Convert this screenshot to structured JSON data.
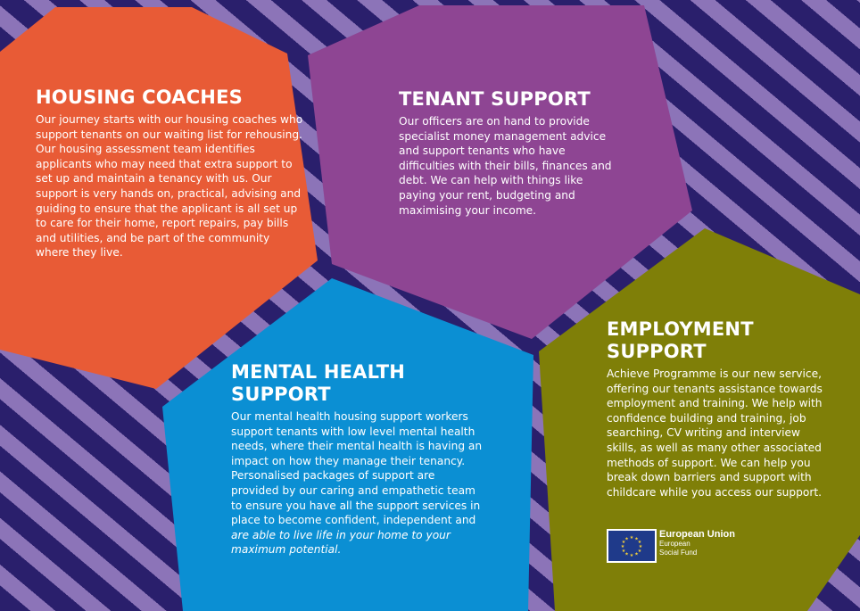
{
  "colors": {
    "background": "#2a1f6c",
    "stripe": "#8c74b8",
    "housing": "#e85b36",
    "tenant": "#8e4593",
    "mental": "#0b8fd3",
    "employment": "#7f7f08",
    "eu_flag": "#1f3a8a"
  },
  "housing": {
    "title": "HOUSING COACHES",
    "body": "Our journey starts with our housing coaches who support tenants on our waiting list for rehousing. Our housing assessment team identifies applicants who may need that extra support to set up and maintain a tenancy with us. Our support is very hands on, practical, advising and guiding to ensure that the applicant is all set up to care for their home, report repairs, pay bills and utilities, and be part of the community where they live."
  },
  "tenant": {
    "title": "TENANT SUPPORT",
    "body": "Our officers are on hand to provide specialist money management advice and support tenants who have difficulties with their bills, finances and debt. We can help with things like paying your rent, budgeting and maximising your income."
  },
  "mental": {
    "title": "MENTAL HEALTH SUPPORT",
    "body": "Our mental health housing support workers support tenants with low level mental health needs, where their mental health is having an impact on how they manage their tenancy. Personalised packages of support are provided by our caring and empathetic team to ensure you have all the support services in place to become confident, independent and ",
    "body_italic": "are able to live life in your home to your maximum potential."
  },
  "employment": {
    "title": "EMPLOYMENT SUPPORT",
    "body": "Achieve Programme is our new service, offering our tenants assistance towards employment and training. We help with confidence building and training, job searching, CV writing and interview skills, as well as many other associated methods of support. We can help you break down barriers and support with childcare while you access our support."
  },
  "eu_logo": {
    "title": "European Union",
    "line1": "European",
    "line2": "Social Fund",
    "icon": "eu-flag-icon"
  }
}
